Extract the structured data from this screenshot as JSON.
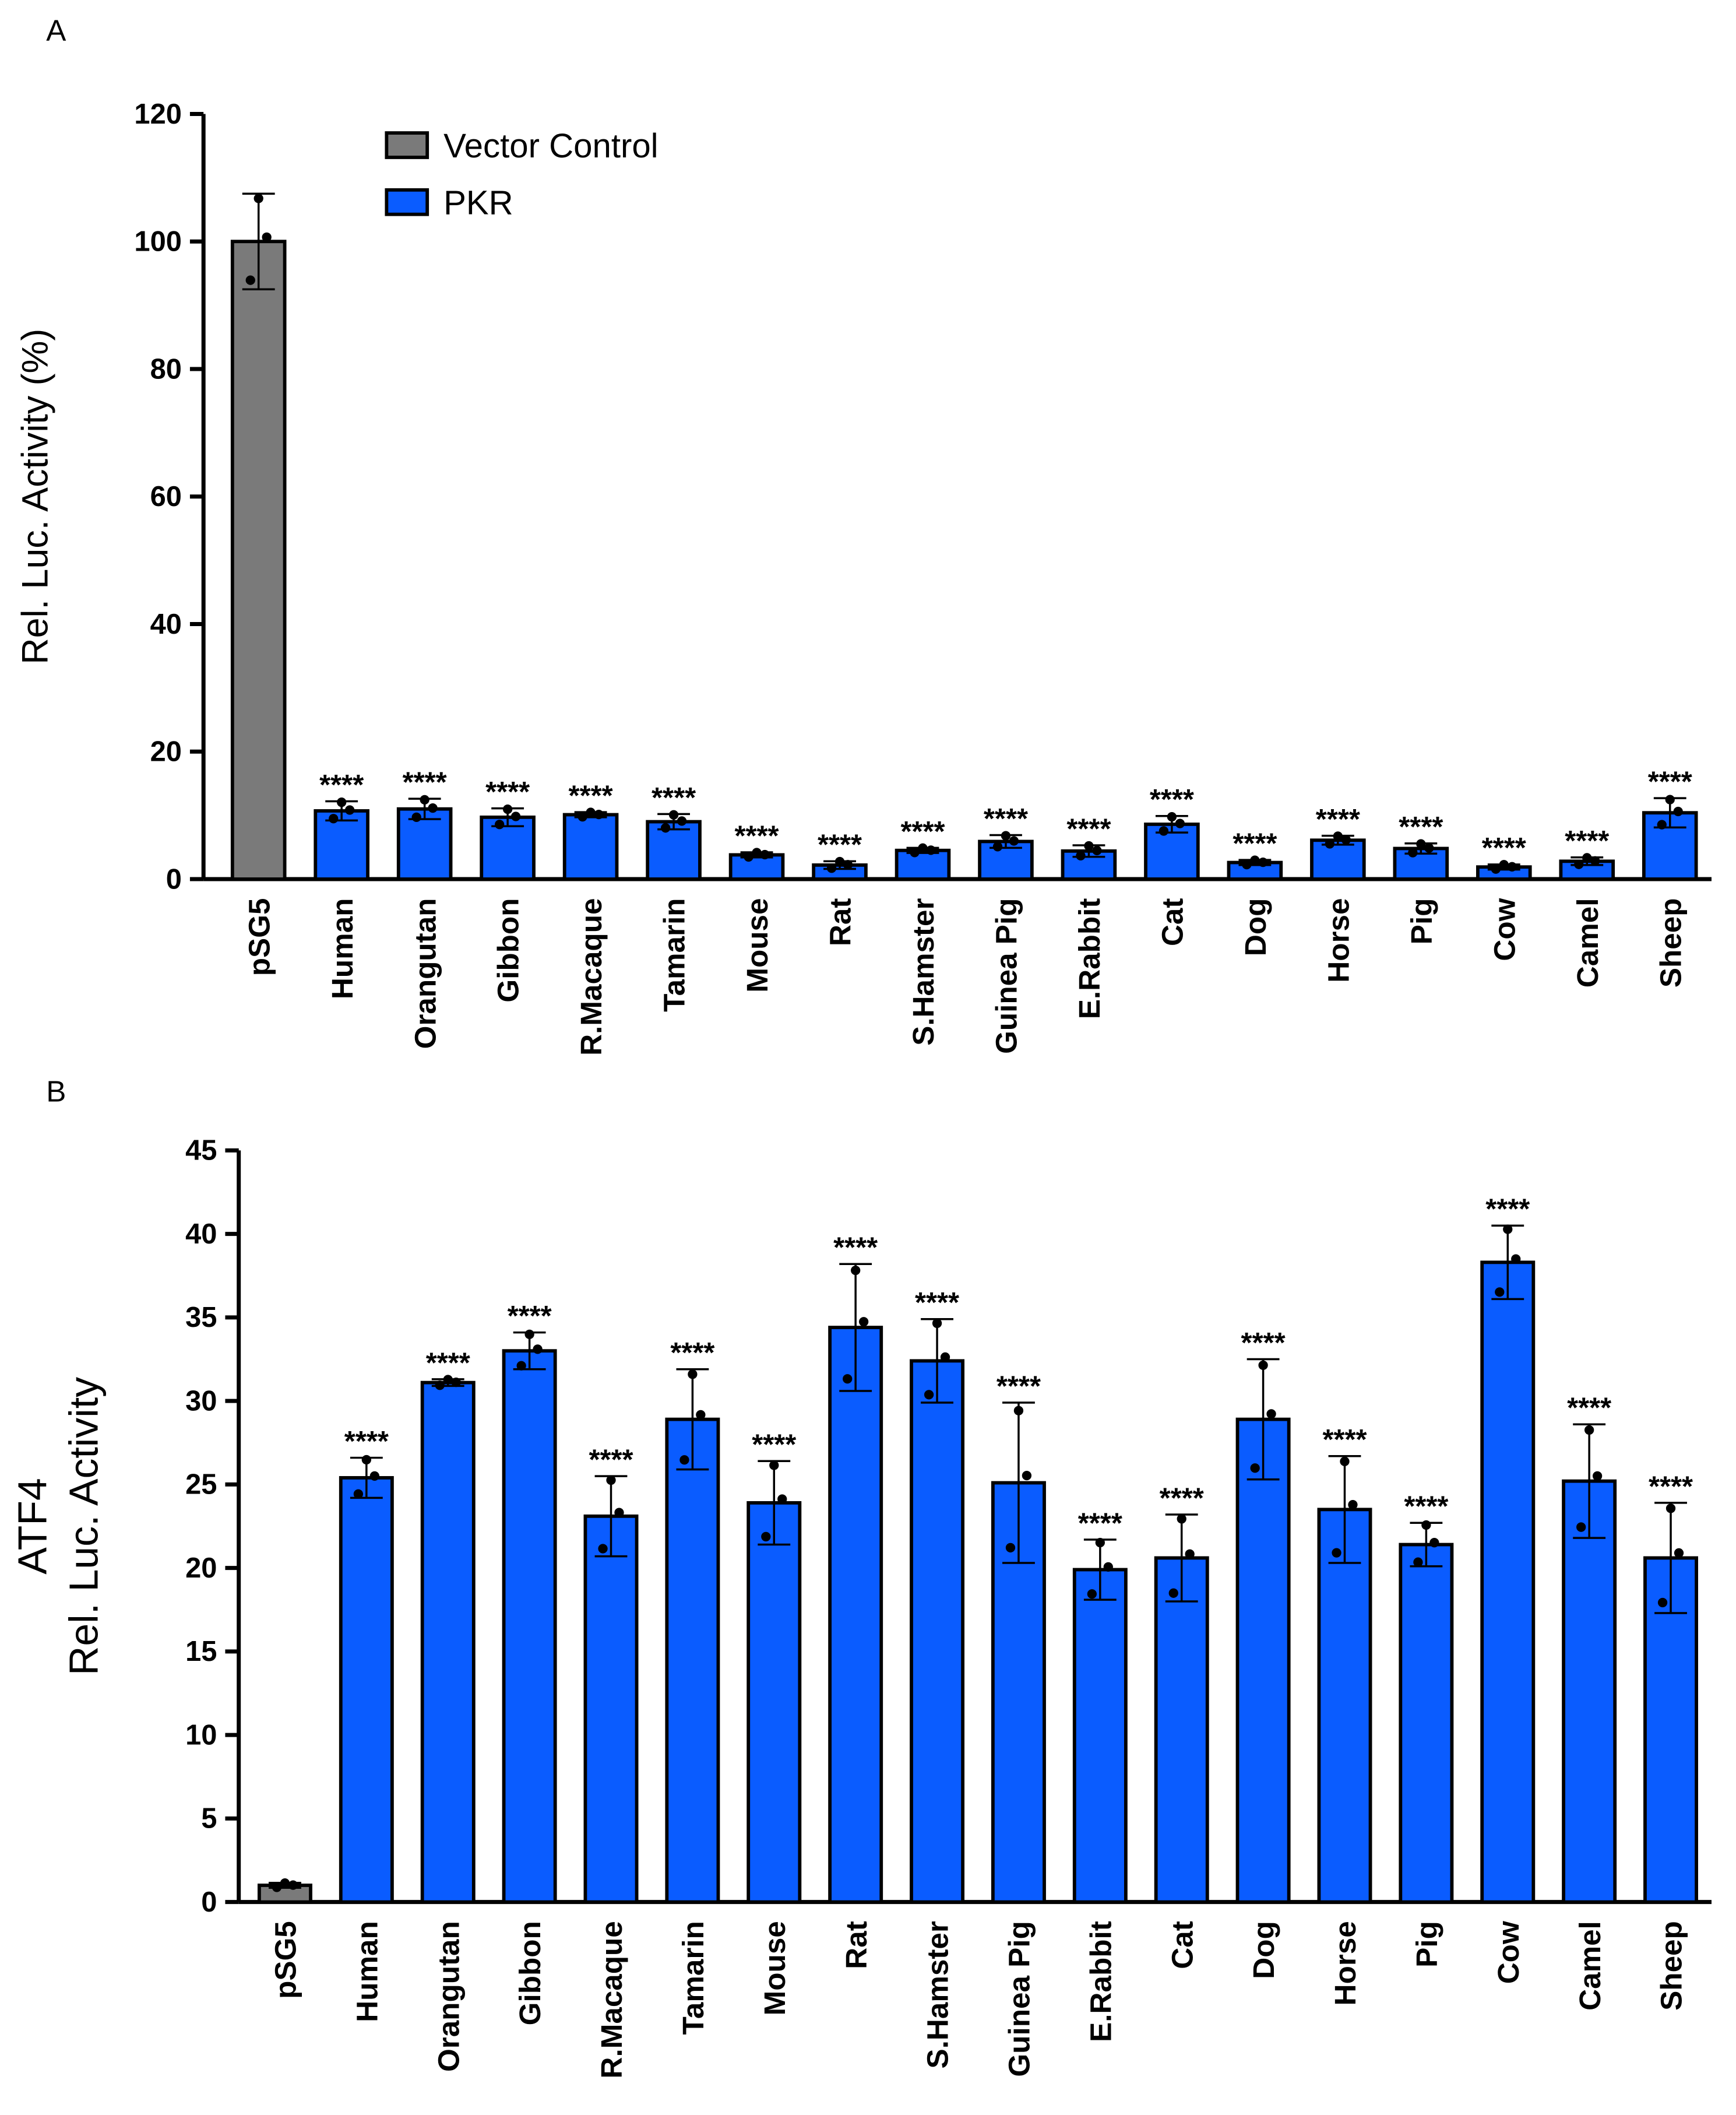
{
  "colors": {
    "vector": "#7a7a7a",
    "pkr": "#0a5cff",
    "stroke": "#000000"
  },
  "chart_data": [
    {
      "type": "bar",
      "panel": "A",
      "title": "",
      "xlabel": "",
      "ylabel": "Rel. Luc. Activity (%)",
      "ylim": [
        0,
        120
      ],
      "yticks": [
        0,
        20,
        40,
        60,
        80,
        100,
        120
      ],
      "legend": {
        "placement": "top-center",
        "entries": [
          "Vector Control",
          "PKR"
        ]
      },
      "categories": [
        "pSG5",
        "Human",
        "Orangutan",
        "Gibbon",
        "R.Macaque",
        "Tamarin",
        "Mouse",
        "Rat",
        "S.Hamster",
        "Guinea Pig",
        "E.Rabbit",
        "Cat",
        "Dog",
        "Horse",
        "Pig",
        "Cow",
        "Camel",
        "Sheep"
      ],
      "series_of_category": [
        "Vector Control",
        "PKR",
        "PKR",
        "PKR",
        "PKR",
        "PKR",
        "PKR",
        "PKR",
        "PKR",
        "PKR",
        "PKR",
        "PKR",
        "PKR",
        "PKR",
        "PKR",
        "PKR",
        "PKR",
        "PKR"
      ],
      "values": [
        100,
        10.7,
        11.0,
        9.7,
        10.1,
        9.0,
        3.8,
        2.2,
        4.5,
        5.9,
        4.4,
        8.6,
        2.6,
        6.1,
        4.8,
        1.9,
        2.8,
        10.4
      ],
      "errors": [
        7.5,
        1.5,
        1.6,
        1.4,
        0.4,
        1.2,
        0.4,
        0.6,
        0.4,
        1.0,
        0.9,
        1.3,
        0.4,
        0.7,
        0.8,
        0.4,
        0.6,
        2.3
      ],
      "annotations": [
        "",
        "****",
        "****",
        "****",
        "****",
        "****",
        "****",
        "****",
        "****",
        "****",
        "****",
        "****",
        "****",
        "****",
        "****",
        "****",
        "****",
        "****"
      ]
    },
    {
      "type": "bar",
      "panel": "B",
      "title": "",
      "xlabel": "",
      "ylabel": "ATF4\nRel. Luc. Activity",
      "ylabel_lines": [
        "ATF4",
        "Rel. Luc. Activity"
      ],
      "ylim": [
        0,
        45
      ],
      "yticks": [
        0,
        5,
        10,
        15,
        20,
        25,
        30,
        35,
        40,
        45
      ],
      "categories": [
        "pSG5",
        "Human",
        "Orangutan",
        "Gibbon",
        "R.Macaque",
        "Tamarin",
        "Mouse",
        "Rat",
        "S.Hamster",
        "Guinea Pig",
        "E.Rabbit",
        "Cat",
        "Dog",
        "Horse",
        "Pig",
        "Cow",
        "Camel",
        "Sheep"
      ],
      "series_of_category": [
        "Vector Control",
        "PKR",
        "PKR",
        "PKR",
        "PKR",
        "PKR",
        "PKR",
        "PKR",
        "PKR",
        "PKR",
        "PKR",
        "PKR",
        "PKR",
        "PKR",
        "PKR",
        "PKR",
        "PKR",
        "PKR"
      ],
      "values": [
        1.0,
        25.4,
        31.1,
        33.0,
        23.1,
        28.9,
        23.9,
        34.4,
        32.4,
        25.1,
        19.9,
        20.6,
        28.9,
        23.5,
        21.4,
        38.3,
        25.2,
        20.6
      ],
      "errors": [
        0.15,
        1.2,
        0.2,
        1.1,
        2.4,
        3.0,
        2.5,
        3.8,
        2.5,
        4.8,
        1.8,
        2.6,
        3.6,
        3.2,
        1.3,
        2.2,
        3.4,
        3.3
      ],
      "annotations": [
        "",
        "****",
        "****",
        "****",
        "****",
        "****",
        "****",
        "****",
        "****",
        "****",
        "****",
        "****",
        "****",
        "****",
        "****",
        "****",
        "****",
        "****"
      ]
    }
  ],
  "panels": {
    "a_label": "A",
    "b_label": "B"
  }
}
